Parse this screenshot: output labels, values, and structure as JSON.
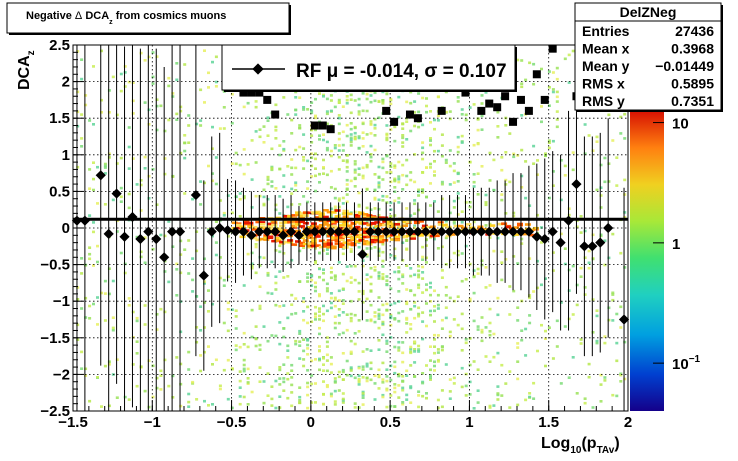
{
  "chart_data": {
    "type": "scatter",
    "title": {
      "prefix": "Negative ",
      "delta": "Δ",
      "mid": " DCA",
      "sub": "z",
      "suffix": " from cosmics muons"
    },
    "xlabel": {
      "main": "Log",
      "sub1": "10",
      "mid": "(p",
      "sub2": "TAv",
      "end": ")"
    },
    "ylabel": {
      "main": "DCA",
      "sub": "z"
    },
    "xlim": [
      -1.5,
      2.0
    ],
    "ylim": [
      -2.5,
      2.5
    ],
    "xticks": [
      "−1.5",
      "−1",
      "−0.5",
      "0",
      "0.5",
      "1",
      "1.5",
      "2"
    ],
    "yticks": [
      "2.5",
      "2",
      "1.5",
      "1",
      "0.5",
      "0",
      "−0.5",
      "−1",
      "−1.5",
      "−2",
      "−2.5"
    ],
    "grid": true,
    "stats_box": {
      "title": "DelZNeg",
      "rows": [
        {
          "label": "Entries",
          "value": "27436"
        },
        {
          "label": "Mean x",
          "value": "0.3968"
        },
        {
          "label": "Mean y",
          "value": "−0.01449"
        },
        {
          "label": "RMS x",
          "value": "0.5895"
        },
        {
          "label": "RMS y",
          "value": "0.7351"
        }
      ]
    },
    "legend": {
      "label": "RF μ = -0.014, σ =   0.107",
      "placement": "top-center"
    },
    "colorbar": {
      "scale": "log",
      "labels": [
        {
          "text": "10",
          "value": 10
        },
        {
          "text": "1",
          "value": 1
        },
        {
          "text": "10",
          "sup": "−1",
          "value": 0.1
        }
      ]
    },
    "fit_line": {
      "y": 0.12
    },
    "mean_series": [
      {
        "x": -1.475,
        "y": 0.1,
        "err": 2.6
      },
      {
        "x": -1.425,
        "y": 0.1,
        "err": 2.6
      },
      {
        "x": -1.325,
        "y": 0.72,
        "err": 2.6
      },
      {
        "x": -1.275,
        "y": -0.08,
        "err": 2.6
      },
      {
        "x": -1.225,
        "y": 0.47,
        "err": 2.6
      },
      {
        "x": -1.175,
        "y": -0.12,
        "err": 2.6
      },
      {
        "x": -1.125,
        "y": 0.15,
        "err": 2.6
      },
      {
        "x": -1.075,
        "y": -0.15,
        "err": 2.6
      },
      {
        "x": -1.025,
        "y": -0.05,
        "err": 2.6
      },
      {
        "x": -0.975,
        "y": -0.15,
        "err": 2.6
      },
      {
        "x": -0.925,
        "y": -0.4,
        "err": 2.6
      },
      {
        "x": -0.875,
        "y": -0.05,
        "err": 2.6
      },
      {
        "x": -0.825,
        "y": -0.05,
        "err": 2.6
      },
      {
        "x": -0.725,
        "y": 0.45,
        "err": 2.2
      },
      {
        "x": -0.675,
        "y": -0.65,
        "err": 1.3
      },
      {
        "x": -0.625,
        "y": -0.05,
        "err": 1.3
      },
      {
        "x": -0.575,
        "y": 0.0,
        "err": 1.3
      },
      {
        "x": -0.525,
        "y": -0.03,
        "err": 0.7
      },
      {
        "x": -0.475,
        "y": -0.05,
        "err": 0.7
      },
      {
        "x": -0.425,
        "y": -0.05,
        "err": 0.6
      },
      {
        "x": -0.375,
        "y": -0.1,
        "err": 0.6
      },
      {
        "x": -0.325,
        "y": -0.05,
        "err": 0.5
      },
      {
        "x": -0.275,
        "y": -0.05,
        "err": 0.5
      },
      {
        "x": -0.225,
        "y": -0.05,
        "err": 0.5
      },
      {
        "x": -0.175,
        "y": -0.1,
        "err": 0.5
      },
      {
        "x": -0.125,
        "y": -0.05,
        "err": 0.5
      },
      {
        "x": -0.075,
        "y": -0.1,
        "err": 0.4
      },
      {
        "x": -0.025,
        "y": -0.05,
        "err": 0.4
      },
      {
        "x": 0.025,
        "y": -0.05,
        "err": 0.4
      },
      {
        "x": 0.075,
        "y": -0.05,
        "err": 0.4
      },
      {
        "x": 0.125,
        "y": -0.05,
        "err": 0.4
      },
      {
        "x": 0.175,
        "y": -0.05,
        "err": 0.4
      },
      {
        "x": 0.225,
        "y": -0.05,
        "err": 0.4
      },
      {
        "x": 0.275,
        "y": -0.05,
        "err": 0.4
      },
      {
        "x": 0.325,
        "y": -0.36,
        "err": 0.9
      },
      {
        "x": 0.375,
        "y": -0.05,
        "err": 0.4
      },
      {
        "x": 0.425,
        "y": -0.05,
        "err": 0.4
      },
      {
        "x": 0.475,
        "y": -0.05,
        "err": 0.4
      },
      {
        "x": 0.525,
        "y": -0.05,
        "err": 0.4
      },
      {
        "x": 0.575,
        "y": -0.05,
        "err": 0.4
      },
      {
        "x": 0.625,
        "y": -0.05,
        "err": 0.4
      },
      {
        "x": 0.675,
        "y": -0.05,
        "err": 0.4
      },
      {
        "x": 0.725,
        "y": -0.05,
        "err": 0.4
      },
      {
        "x": 0.775,
        "y": -0.05,
        "err": 0.4
      },
      {
        "x": 0.825,
        "y": -0.05,
        "err": 0.5
      },
      {
        "x": 0.875,
        "y": -0.05,
        "err": 0.5
      },
      {
        "x": 0.925,
        "y": -0.05,
        "err": 0.5
      },
      {
        "x": 0.975,
        "y": -0.05,
        "err": 0.5
      },
      {
        "x": 1.025,
        "y": -0.05,
        "err": 0.6
      },
      {
        "x": 1.075,
        "y": -0.05,
        "err": 0.6
      },
      {
        "x": 1.125,
        "y": -0.05,
        "err": 0.6
      },
      {
        "x": 1.175,
        "y": -0.05,
        "err": 0.7
      },
      {
        "x": 1.225,
        "y": -0.05,
        "err": 0.7
      },
      {
        "x": 1.275,
        "y": -0.05,
        "err": 0.8
      },
      {
        "x": 1.325,
        "y": -0.05,
        "err": 0.8
      },
      {
        "x": 1.375,
        "y": -0.05,
        "err": 0.9
      },
      {
        "x": 1.425,
        "y": -0.12,
        "err": 1.0
      },
      {
        "x": 1.475,
        "y": -0.15,
        "err": 1.1
      },
      {
        "x": 1.525,
        "y": -0.05,
        "err": 1.1
      },
      {
        "x": 1.575,
        "y": -0.2,
        "err": 1.2
      },
      {
        "x": 1.625,
        "y": 0.1,
        "err": 1.5
      },
      {
        "x": 1.675,
        "y": 0.6,
        "err": 1.5
      },
      {
        "x": 1.725,
        "y": -0.25,
        "err": 1.5
      },
      {
        "x": 1.775,
        "y": -0.25,
        "err": 1.5
      },
      {
        "x": 1.825,
        "y": -0.2,
        "err": 1.5
      },
      {
        "x": 1.875,
        "y": 0.0,
        "err": 1.5
      },
      {
        "x": 1.975,
        "y": -1.25,
        "err": 1.8
      }
    ],
    "rms_series": [
      {
        "x": -0.425,
        "y": 1.85
      },
      {
        "x": -0.375,
        "y": 1.85
      },
      {
        "x": -0.325,
        "y": 1.85
      },
      {
        "x": -0.275,
        "y": 1.75
      },
      {
        "x": -0.225,
        "y": 1.55
      },
      {
        "x": 0.025,
        "y": 1.4
      },
      {
        "x": 0.075,
        "y": 1.4
      },
      {
        "x": 0.125,
        "y": 1.35
      },
      {
        "x": 0.475,
        "y": 1.6
      },
      {
        "x": 0.525,
        "y": 1.45
      },
      {
        "x": 0.625,
        "y": 1.55
      },
      {
        "x": 0.675,
        "y": 1.5
      },
      {
        "x": 0.825,
        "y": 1.6
      },
      {
        "x": 0.975,
        "y": 1.85
      },
      {
        "x": 1.075,
        "y": 1.6
      },
      {
        "x": 1.125,
        "y": 1.7
      },
      {
        "x": 1.175,
        "y": 1.65
      },
      {
        "x": 1.225,
        "y": 1.8
      },
      {
        "x": 1.275,
        "y": 1.45
      },
      {
        "x": 1.325,
        "y": 1.75
      },
      {
        "x": 1.375,
        "y": 1.6
      },
      {
        "x": 1.425,
        "y": 2.1
      },
      {
        "x": 1.475,
        "y": 1.75
      },
      {
        "x": 1.525,
        "y": 2.45
      },
      {
        "x": 1.675,
        "y": 1.8
      },
      {
        "x": 1.725,
        "y": 1.9
      }
    ]
  }
}
